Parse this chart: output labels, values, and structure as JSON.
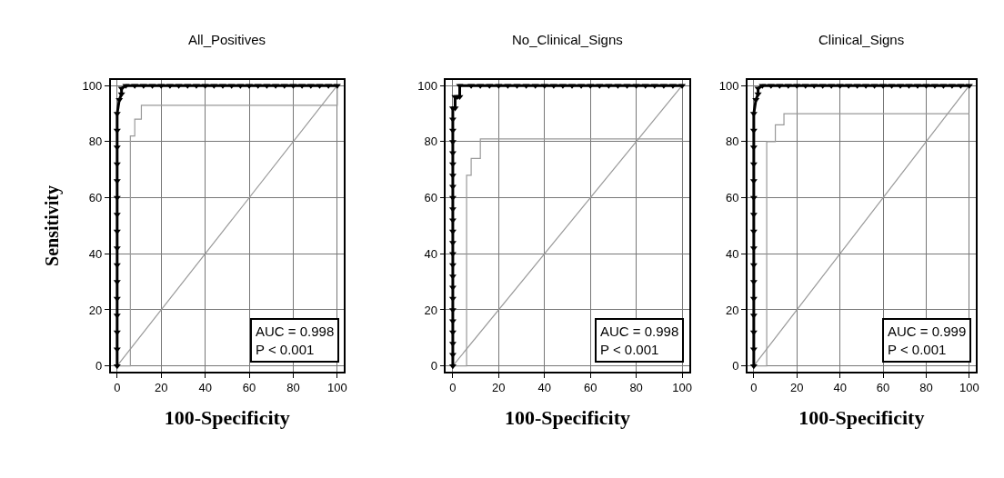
{
  "chart_data": [
    {
      "type": "line",
      "title": "All_Positives",
      "xlabel": "100-Specificity",
      "ylabel": "Sensitivity",
      "xlim": [
        -3,
        103
      ],
      "ylim": [
        -2,
        102
      ],
      "xticks": [
        0,
        20,
        40,
        60,
        80,
        100
      ],
      "yticks": [
        0,
        20,
        40,
        60,
        80,
        100
      ],
      "grid": true,
      "annotations": [
        "AUC = 0.998",
        "P < 0.001"
      ],
      "series": [
        {
          "color": "#999999",
          "x": [
            0,
            100
          ],
          "values": [
            0,
            100
          ]
        },
        {
          "type": "step",
          "color": "#999999",
          "x": [
            0,
            6,
            6,
            8,
            8,
            11,
            11,
            100,
            100
          ],
          "values": [
            0,
            0,
            82,
            82,
            88,
            88,
            93,
            93,
            100
          ]
        },
        {
          "color": "#000000",
          "marker": "triangle",
          "x": [
            0,
            0,
            0,
            0,
            0,
            0,
            0,
            0,
            0,
            0,
            0,
            0,
            0,
            0,
            0,
            0,
            1,
            2,
            2,
            4,
            8,
            12,
            16,
            20,
            24,
            28,
            32,
            36,
            40,
            44,
            48,
            52,
            56,
            60,
            64,
            68,
            72,
            76,
            80,
            84,
            88,
            92,
            96,
            100
          ],
          "values": [
            0,
            6,
            12,
            18,
            24,
            30,
            36,
            42,
            48,
            54,
            60,
            66,
            72,
            78,
            84,
            90,
            95,
            97,
            99,
            100,
            100,
            100,
            100,
            100,
            100,
            100,
            100,
            100,
            100,
            100,
            100,
            100,
            100,
            100,
            100,
            100,
            100,
            100,
            100,
            100,
            100,
            100,
            100,
            100
          ]
        }
      ]
    },
    {
      "type": "line",
      "title": "No_Clinical_Signs",
      "xlabel": "100-Specificity",
      "xlim": [
        -3,
        103
      ],
      "ylim": [
        -2,
        102
      ],
      "xticks": [
        0,
        20,
        40,
        60,
        80,
        100
      ],
      "yticks": [
        0,
        20,
        40,
        60,
        80,
        100
      ],
      "grid": true,
      "annotations": [
        "AUC = 0.998",
        "P < 0.001"
      ],
      "series": [
        {
          "color": "#999999",
          "x": [
            0,
            100
          ],
          "values": [
            0,
            100
          ]
        },
        {
          "type": "step",
          "color": "#999999",
          "x": [
            0,
            6,
            6,
            8,
            8,
            12,
            12,
            100
          ],
          "values": [
            0,
            0,
            68,
            68,
            74,
            74,
            81,
            81
          ]
        },
        {
          "color": "#000000",
          "marker": "triangle",
          "x": [
            0,
            0,
            0,
            0,
            0,
            0,
            0,
            0,
            0,
            0,
            0,
            0,
            0,
            0,
            0,
            0,
            0,
            0,
            0,
            0,
            0,
            0,
            0,
            0,
            1,
            1,
            2,
            3,
            3,
            8,
            12,
            16,
            20,
            24,
            28,
            32,
            36,
            40,
            44,
            48,
            52,
            56,
            60,
            64,
            68,
            72,
            76,
            80,
            84,
            88,
            92,
            96,
            100
          ],
          "values": [
            0,
            4,
            8,
            12,
            16,
            20,
            24,
            28,
            32,
            36,
            40,
            44,
            48,
            52,
            56,
            60,
            64,
            68,
            72,
            76,
            80,
            84,
            88,
            92,
            92,
            96,
            96,
            96,
            100,
            100,
            100,
            100,
            100,
            100,
            100,
            100,
            100,
            100,
            100,
            100,
            100,
            100,
            100,
            100,
            100,
            100,
            100,
            100,
            100,
            100,
            100,
            100,
            100
          ]
        }
      ]
    },
    {
      "type": "line",
      "title": "Clinical_Signs",
      "xlabel": "100-Specificity",
      "xlim": [
        -3,
        103
      ],
      "ylim": [
        -2,
        102
      ],
      "xticks": [
        0,
        20,
        40,
        60,
        80,
        100
      ],
      "yticks": [
        0,
        20,
        40,
        60,
        80,
        100
      ],
      "grid": true,
      "annotations": [
        "AUC = 0.999",
        "P < 0.001"
      ],
      "series": [
        {
          "color": "#999999",
          "x": [
            0,
            100
          ],
          "values": [
            0,
            100
          ]
        },
        {
          "type": "step",
          "color": "#999999",
          "x": [
            0,
            6,
            6,
            10,
            10,
            14,
            14,
            100
          ],
          "values": [
            0,
            0,
            80,
            80,
            86,
            86,
            90,
            90
          ]
        },
        {
          "color": "#000000",
          "marker": "triangle",
          "x": [
            0,
            0,
            0,
            0,
            0,
            0,
            0,
            0,
            0,
            0,
            0,
            0,
            0,
            0,
            0,
            0,
            1,
            2,
            2,
            4,
            8,
            12,
            16,
            20,
            24,
            28,
            32,
            36,
            40,
            44,
            48,
            52,
            56,
            60,
            64,
            68,
            72,
            76,
            80,
            84,
            88,
            92,
            96,
            100
          ],
          "values": [
            0,
            6,
            12,
            18,
            24,
            30,
            36,
            42,
            48,
            54,
            60,
            66,
            72,
            78,
            84,
            90,
            95,
            97,
            99,
            100,
            100,
            100,
            100,
            100,
            100,
            100,
            100,
            100,
            100,
            100,
            100,
            100,
            100,
            100,
            100,
            100,
            100,
            100,
            100,
            100,
            100,
            100,
            100,
            100
          ]
        }
      ]
    }
  ]
}
